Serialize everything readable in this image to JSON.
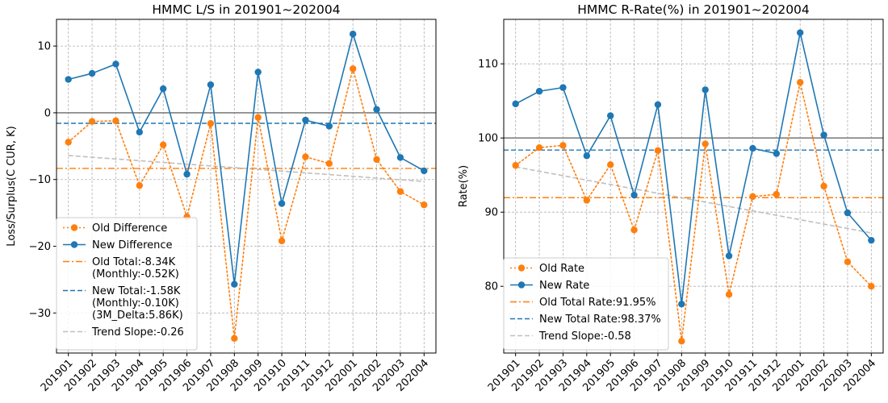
{
  "colors": {
    "old": "#ff7f0e",
    "new": "#1f77b4",
    "trend": "#bfbfbf",
    "zero_line": "#808080",
    "grid": "#b0b0b0"
  },
  "chart_data": [
    {
      "type": "line",
      "title": "HMMC L/S in 201901~202004",
      "xlabel": "",
      "ylabel": "Loss/Surplus(C CUR, K)",
      "categories": [
        "201901",
        "201902",
        "201903",
        "201904",
        "201905",
        "201906",
        "201907",
        "201908",
        "201909",
        "201910",
        "201911",
        "201912",
        "202001",
        "202002",
        "202003",
        "202004"
      ],
      "ylim": [
        -36,
        14
      ],
      "yticks": [
        -30,
        -20,
        -10,
        0,
        10
      ],
      "reference_line": 0,
      "grid": true,
      "legend_position": "lower-left",
      "series": [
        {
          "name": "Old Difference",
          "style": "dotted-markers",
          "values": [
            -4.4,
            -1.3,
            -1.2,
            -10.9,
            -4.8,
            -15.6,
            -1.6,
            -33.8,
            -0.7,
            -19.2,
            -6.6,
            -7.6,
            6.6,
            -7.0,
            -11.8,
            -13.8
          ]
        },
        {
          "name": "New Difference",
          "style": "solid-markers",
          "values": [
            5.0,
            5.9,
            7.3,
            -2.9,
            3.6,
            -9.2,
            4.2,
            -25.7,
            6.1,
            -13.6,
            -1.1,
            -2.0,
            11.8,
            0.5,
            -6.7,
            -8.7
          ]
        }
      ],
      "hlines": [
        {
          "name": "Old Total",
          "value": -8.34,
          "style": "dashdot",
          "label_lines": [
            "Old Total:-8.34K",
            "(Monthly:-0.52K)"
          ]
        },
        {
          "name": "New Total",
          "value": -1.58,
          "style": "dashed",
          "label_lines": [
            "New Total:-1.58K",
            "(Monthly:-0.10K)",
            "(3M_Delta:5.86K)"
          ]
        }
      ],
      "trend": {
        "name": "Trend Slope",
        "start": -6.4,
        "end": -10.3,
        "label": "Trend Slope:-0.26"
      }
    },
    {
      "type": "line",
      "title": "HMMC R-Rate(%) in 201901~202004",
      "xlabel": "",
      "ylabel": "Rate(%)",
      "categories": [
        "201901",
        "201902",
        "201903",
        "201904",
        "201905",
        "201906",
        "201907",
        "201908",
        "201909",
        "201910",
        "201911",
        "201912",
        "202001",
        "202002",
        "202003",
        "202004"
      ],
      "ylim": [
        71,
        116
      ],
      "yticks": [
        80,
        90,
        100,
        110
      ],
      "reference_line": 100,
      "grid": true,
      "legend_position": "lower-left",
      "series": [
        {
          "name": "Old Rate",
          "style": "dotted-markers",
          "values": [
            96.3,
            98.7,
            99.0,
            91.6,
            96.4,
            87.6,
            98.3,
            72.6,
            99.2,
            78.9,
            92.1,
            92.4,
            107.5,
            93.5,
            83.3,
            80.0
          ]
        },
        {
          "name": "New Rate",
          "style": "solid-markers",
          "values": [
            104.6,
            106.3,
            106.8,
            97.6,
            103.0,
            92.3,
            104.5,
            77.6,
            106.5,
            84.1,
            98.6,
            97.9,
            114.2,
            100.4,
            89.9,
            86.2
          ]
        }
      ],
      "hlines": [
        {
          "name": "Old Total Rate",
          "value": 91.95,
          "style": "dashdot",
          "label_lines": [
            "Old Total Rate:91.95%"
          ]
        },
        {
          "name": "New Total Rate",
          "value": 98.37,
          "style": "dashed",
          "label_lines": [
            "New Total Rate:98.37%"
          ]
        }
      ],
      "trend": {
        "name": "Trend Slope",
        "start": 96.1,
        "end": 87.2,
        "label": "Trend Slope:-0.58"
      }
    }
  ]
}
